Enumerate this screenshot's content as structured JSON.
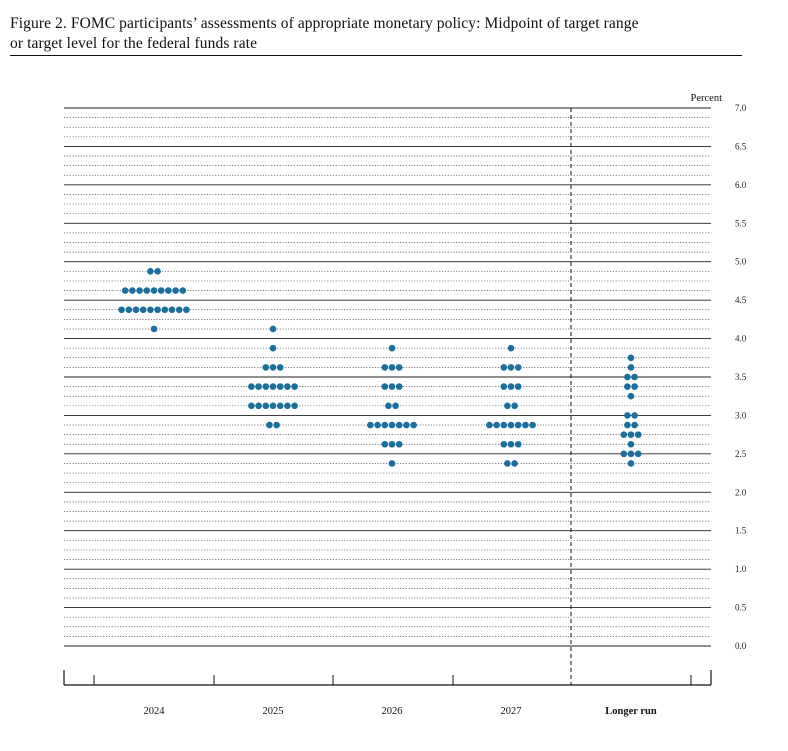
{
  "figure": {
    "title_line1": "Figure 2.  FOMC participants’ assessments of appropriate monetary policy:  Midpoint of target range",
    "title_line2": "or target level for the federal funds rate"
  },
  "chart_data": {
    "type": "scatter",
    "title": "Figure 2. FOMC participants’ assessments of appropriate monetary policy: Midpoint of target range or target level for the federal funds rate",
    "ylabel": "Percent",
    "ylim": [
      0,
      7
    ],
    "y_ticks": [
      "0.0",
      "0.5",
      "1.0",
      "1.5",
      "2.0",
      "2.5",
      "3.0",
      "3.5",
      "4.0",
      "4.5",
      "5.0",
      "5.5",
      "6.0",
      "6.5",
      "7.0"
    ],
    "categories": [
      "2024",
      "2025",
      "2026",
      "2027",
      "Longer run"
    ],
    "grid": "dotted horizontal lines every 0.125 percentage point, solid lines at whole and half percents",
    "dot_color": "#1a6f9f",
    "columns": [
      {
        "label": "2024",
        "levels": [
          {
            "y": 4.875,
            "count": 2
          },
          {
            "y": 4.625,
            "count": 9
          },
          {
            "y": 4.375,
            "count": 10
          },
          {
            "y": 4.125,
            "count": 1
          }
        ]
      },
      {
        "label": "2025",
        "levels": [
          {
            "y": 4.125,
            "count": 1
          },
          {
            "y": 3.875,
            "count": 1
          },
          {
            "y": 3.625,
            "count": 3
          },
          {
            "y": 3.375,
            "count": 7
          },
          {
            "y": 3.125,
            "count": 7
          },
          {
            "y": 2.875,
            "count": 2
          }
        ]
      },
      {
        "label": "2026",
        "levels": [
          {
            "y": 3.875,
            "count": 1
          },
          {
            "y": 3.625,
            "count": 3
          },
          {
            "y": 3.375,
            "count": 3
          },
          {
            "y": 3.125,
            "count": 2
          },
          {
            "y": 2.875,
            "count": 7
          },
          {
            "y": 2.625,
            "count": 3
          },
          {
            "y": 2.375,
            "count": 1
          }
        ]
      },
      {
        "label": "2027",
        "levels": [
          {
            "y": 3.875,
            "count": 1
          },
          {
            "y": 3.625,
            "count": 3
          },
          {
            "y": 3.375,
            "count": 3
          },
          {
            "y": 3.125,
            "count": 2
          },
          {
            "y": 2.875,
            "count": 7
          },
          {
            "y": 2.625,
            "count": 3
          },
          {
            "y": 2.375,
            "count": 2
          }
        ]
      },
      {
        "label": "Longer run",
        "levels": [
          {
            "y": 3.75,
            "count": 1
          },
          {
            "y": 3.625,
            "count": 1
          },
          {
            "y": 3.5,
            "count": 2
          },
          {
            "y": 3.375,
            "count": 2
          },
          {
            "y": 3.25,
            "count": 1
          },
          {
            "y": 3.0,
            "count": 2
          },
          {
            "y": 2.875,
            "count": 2
          },
          {
            "y": 2.75,
            "count": 3
          },
          {
            "y": 2.625,
            "count": 1
          },
          {
            "y": 2.5,
            "count": 3
          },
          {
            "y": 2.375,
            "count": 1
          }
        ]
      }
    ]
  }
}
